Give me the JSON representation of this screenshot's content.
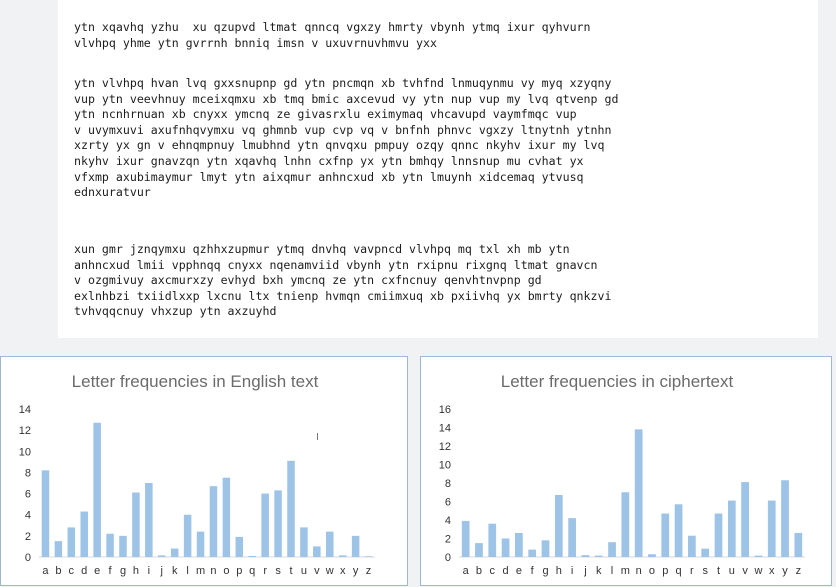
{
  "document": {
    "paragraphs": [
      "ytn xqavhq yzhu  xu qzupvd ltmat qnncq vgxzy hmrty vbynh ytmq ixur qyhvurn\nvlvhpq yhme ytn gvrrnh bnniq imsn v uxuvrnuvhmvu yxx",
      "ytn vlvhpq hvan lvq gxxsnupnp gd ytn pncmqn xb tvhfnd lnmuqynmu vy myq xzyqny\nvup ytn veevhnuy mceixqmxu xb tmq bmic axcevud vy ytn nup vup my lvq qtvenp gd\nytn ncnhrnuan xb cnyxx ymcnq ze givasrxlu eximymaq vhcavupd vaymfmqc vup\nv uvymxuvi axufnhqvymxu vq ghmnb vup cvp vq v bnfnh phnvc vgxzy ltnytnh ytnhn\nxzrty yx gn v ehnqmpnuy lmubhnd ytn qnvqxu pmpuy ozqy qnnc nkyhv ixur my lvq\nnkyhv ixur gnavzqn ytn xqavhq lnhn cxfnp yx ytn bmhqy lnnsnup mu cvhat yx\nvfxmp axubimaymur lmyt ytn aixqmur anhncxud xb ytn lmuynh xidcemaq ytvusq\nednxuratvur",
      "xun gmr jznqymxu qzhhxzupmur ytmq dnvhq vavpncd vlvhpq mq txl xh mb ytn\nanhncxud lmii vpphnqq cnyxx nqenamviid vbynh ytn rxipnu rixgnq ltmat gnavcn\nv ozgmivuy axcmurxzy evhyd bxh ymcnq ze ytn cxfncnuy qenvhtnvpnp gd\nexlnhbzi txiidlxxp lxcnu ltx tnienp hvmqn cmiimxuq xb pxiivhq yx bmrty qnkzvi\ntvhvqqcnuy vhxzup ytn axzuyhd"
    ]
  },
  "charts": [
    {
      "title": "Letter frequencies in English text"
    },
    {
      "title": "Letter frequencies in ciphertext"
    }
  ],
  "colors": {
    "bar": "#9dc3e6",
    "axis": "#d9d9d9",
    "panel_border": "#9fb8d3",
    "title": "#6b6b6b"
  },
  "chart_data": [
    {
      "type": "bar",
      "title": "Letter frequencies in English text",
      "xlabel": "",
      "ylabel": "",
      "categories": [
        "a",
        "b",
        "c",
        "d",
        "e",
        "f",
        "g",
        "h",
        "i",
        "j",
        "k",
        "l",
        "m",
        "n",
        "o",
        "p",
        "q",
        "r",
        "s",
        "t",
        "u",
        "v",
        "w",
        "x",
        "y",
        "z"
      ],
      "values": [
        8.2,
        1.5,
        2.8,
        4.3,
        12.7,
        2.2,
        2.0,
        6.1,
        7.0,
        0.15,
        0.8,
        4.0,
        2.4,
        6.7,
        7.5,
        1.9,
        0.1,
        6.0,
        6.3,
        9.1,
        2.8,
        1.0,
        2.4,
        0.15,
        2.0,
        0.07
      ],
      "ylim": [
        0,
        14
      ],
      "yticks": [
        0,
        2,
        4,
        6,
        8,
        10,
        12,
        14
      ],
      "grid": false,
      "legend": "none"
    },
    {
      "type": "bar",
      "title": "Letter frequencies in ciphertext",
      "xlabel": "",
      "ylabel": "",
      "categories": [
        "a",
        "b",
        "c",
        "d",
        "e",
        "f",
        "g",
        "h",
        "i",
        "j",
        "k",
        "l",
        "m",
        "n",
        "o",
        "p",
        "q",
        "r",
        "s",
        "t",
        "u",
        "v",
        "w",
        "x",
        "y",
        "z"
      ],
      "values": [
        3.9,
        1.5,
        3.6,
        2.0,
        2.6,
        0.8,
        1.8,
        6.7,
        4.2,
        0.2,
        0.15,
        1.6,
        7.0,
        13.8,
        0.3,
        4.7,
        5.7,
        2.3,
        0.9,
        4.7,
        6.1,
        8.1,
        0.15,
        6.1,
        8.3,
        2.6
      ],
      "ylim": [
        0,
        16
      ],
      "yticks": [
        0,
        2,
        4,
        6,
        8,
        10,
        12,
        14,
        16
      ],
      "grid": false,
      "legend": "none"
    }
  ]
}
